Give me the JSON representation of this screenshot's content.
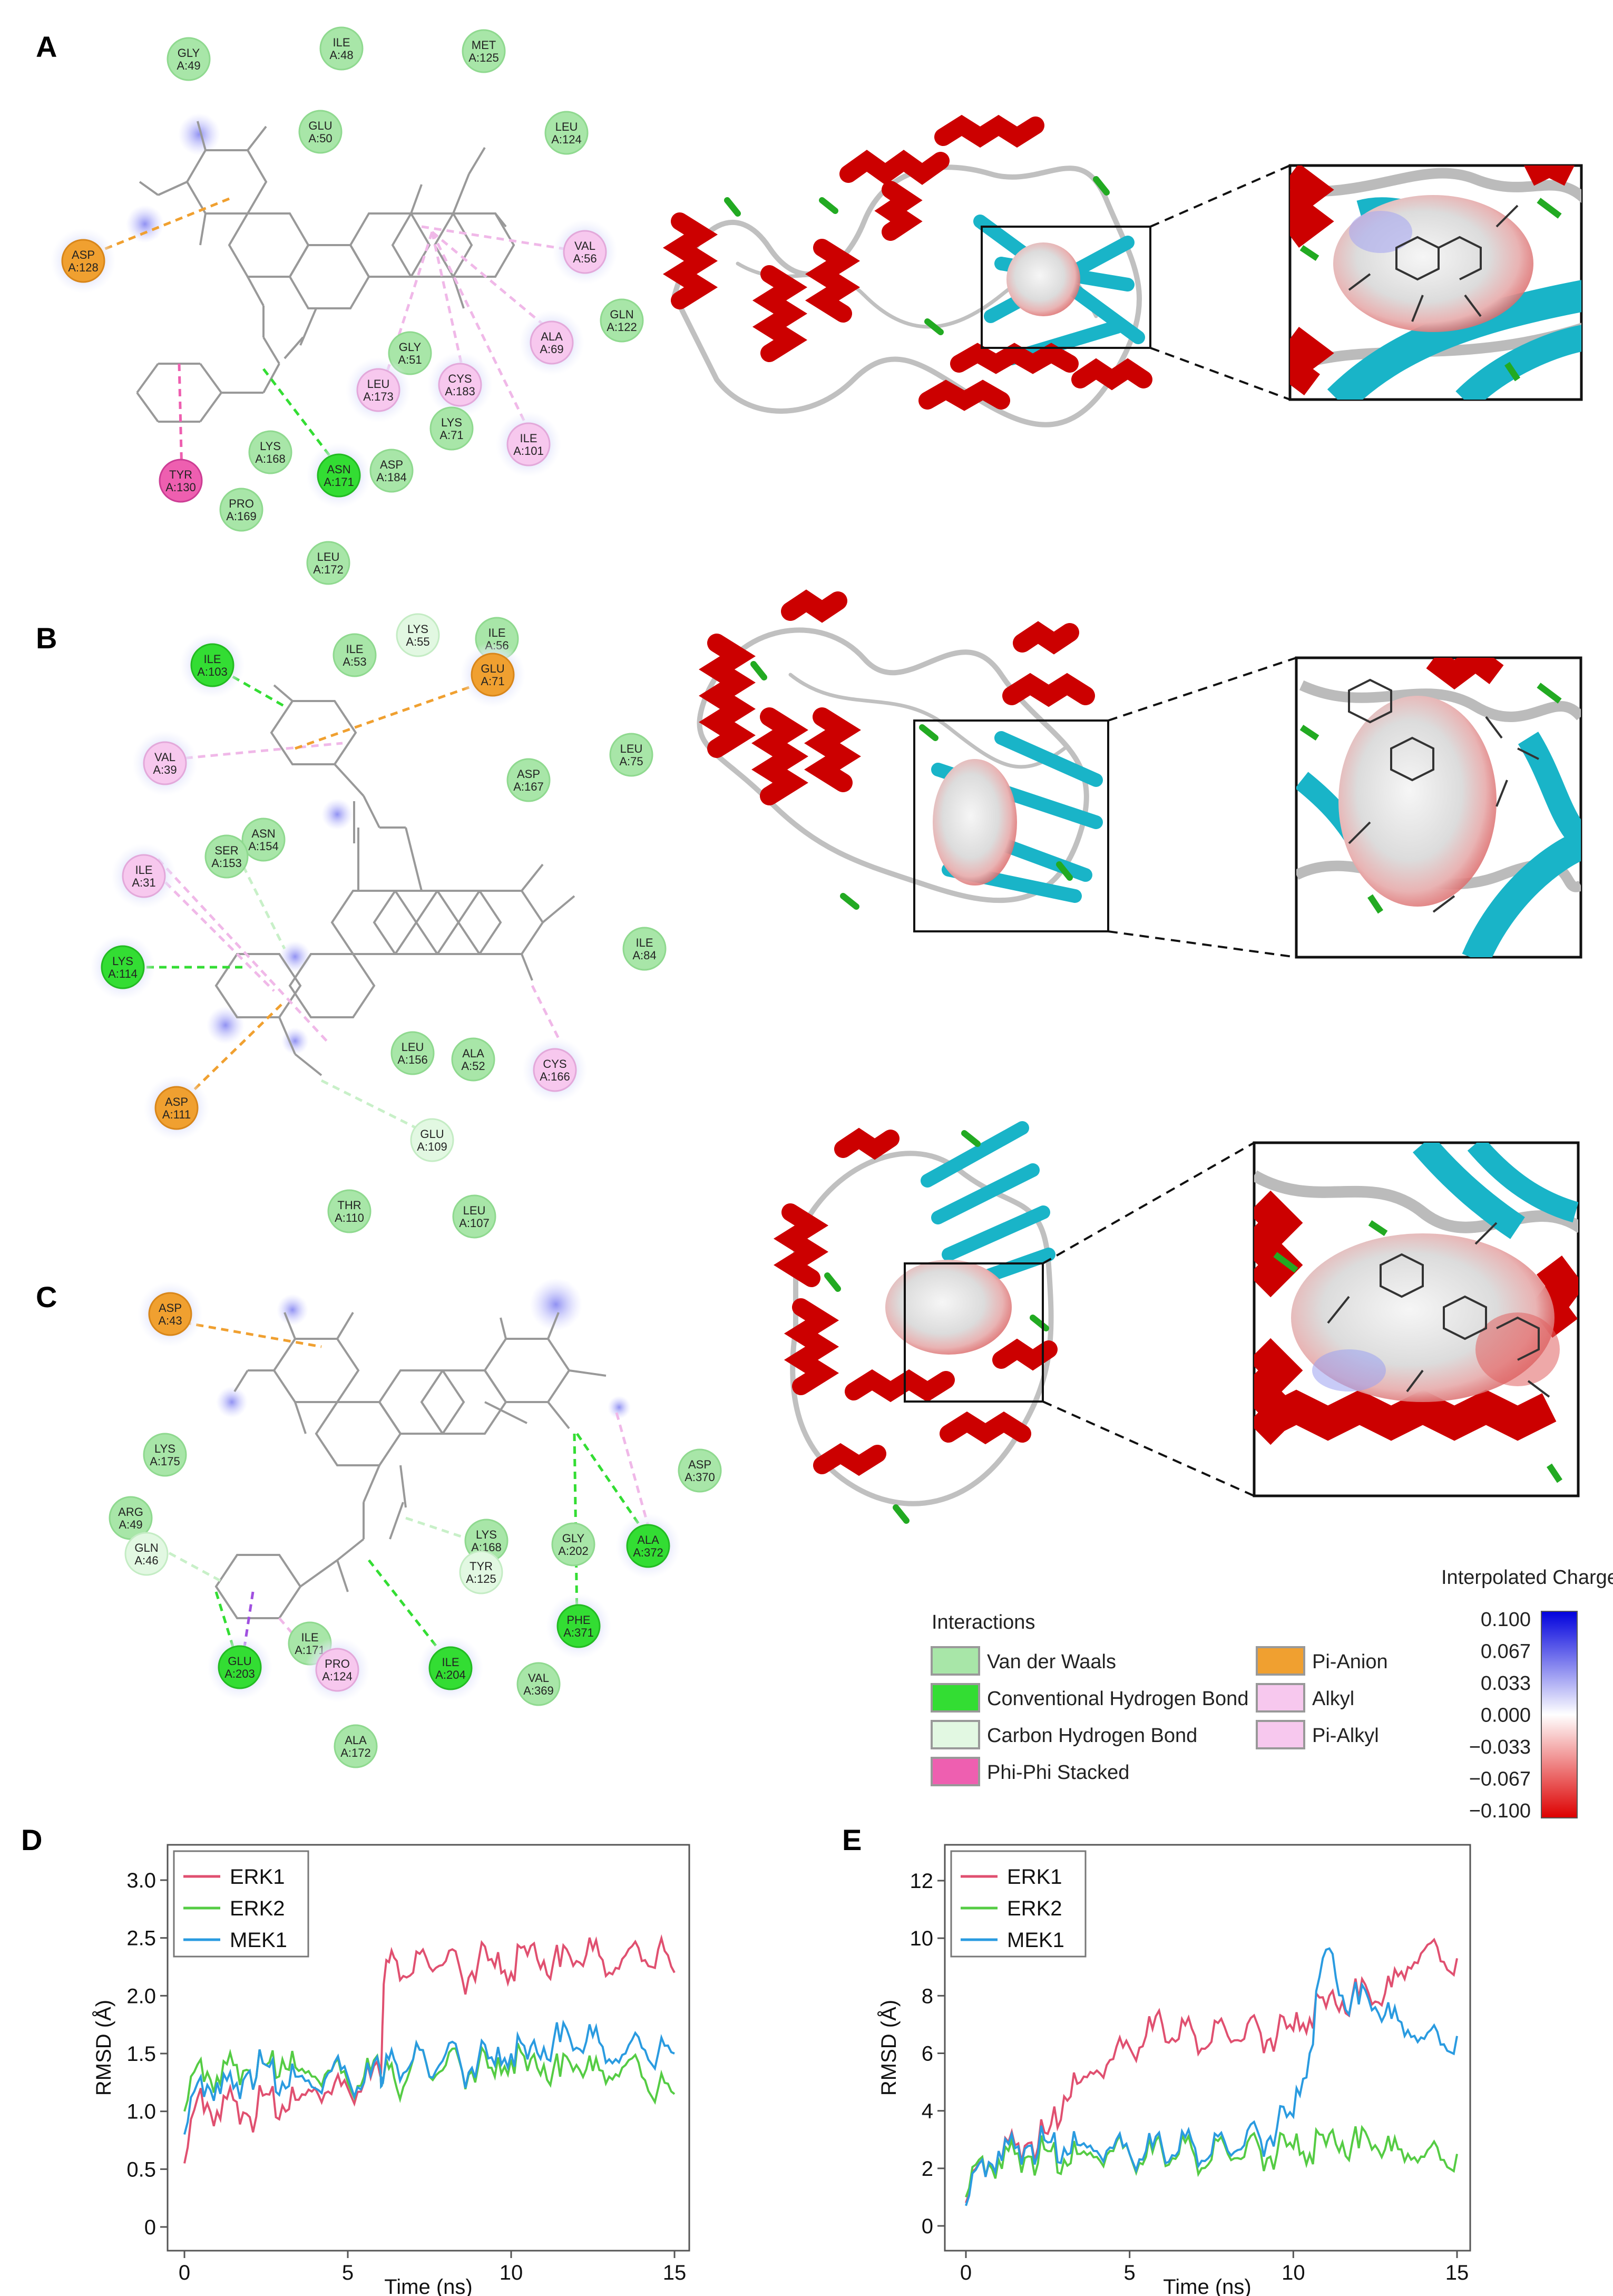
{
  "panels": {
    "a": "A",
    "b": "B",
    "c": "C",
    "d": "D",
    "e": "E"
  },
  "colors": {
    "vdw": "#a8e6a8",
    "hbond": "#33dd33",
    "carbon_hbond": "#e2f8e2",
    "pipi": "#ee5fb0",
    "pi_anion": "#f0a030",
    "alkyl": "#f7c8ee",
    "pi_alkyl": "#f7c8ee",
    "helix": "#cc0000",
    "sheet": "#19b4c8",
    "coil": "#bfbfbf",
    "turn": "#22aa22",
    "erk1": "#e05070",
    "erk2": "#55cc44",
    "mek1": "#2a9be0"
  },
  "panel_a": {
    "residues": [
      {
        "name": "GLY",
        "num": "A:49",
        "type": "vdw"
      },
      {
        "name": "ILE",
        "num": "A:48",
        "type": "vdw"
      },
      {
        "name": "MET",
        "num": "A:125",
        "type": "vdw"
      },
      {
        "name": "GLU",
        "num": "A:50",
        "type": "vdw"
      },
      {
        "name": "LEU",
        "num": "A:124",
        "type": "vdw"
      },
      {
        "name": "ASP",
        "num": "A:128",
        "type": "pi_anion"
      },
      {
        "name": "VAL",
        "num": "A:56",
        "type": "alkyl"
      },
      {
        "name": "GLN",
        "num": "A:122",
        "type": "vdw"
      },
      {
        "name": "ALA",
        "num": "A:69",
        "type": "alkyl"
      },
      {
        "name": "GLY",
        "num": "A:51",
        "type": "vdw"
      },
      {
        "name": "LEU",
        "num": "A:173",
        "type": "alkyl"
      },
      {
        "name": "CYS",
        "num": "A:183",
        "type": "alkyl"
      },
      {
        "name": "LYS",
        "num": "A:71",
        "type": "vdw"
      },
      {
        "name": "ILE",
        "num": "A:101",
        "type": "alkyl"
      },
      {
        "name": "LYS",
        "num": "A:168",
        "type": "vdw"
      },
      {
        "name": "ASN",
        "num": "A:171",
        "type": "hbond"
      },
      {
        "name": "ASP",
        "num": "A:184",
        "type": "vdw"
      },
      {
        "name": "TYR",
        "num": "A:130",
        "type": "pipi"
      },
      {
        "name": "PRO",
        "num": "A:169",
        "type": "vdw"
      },
      {
        "name": "LEU",
        "num": "A:172",
        "type": "vdw"
      }
    ]
  },
  "panel_b": {
    "residues": [
      {
        "name": "ILE",
        "num": "A:103",
        "type": "hbond"
      },
      {
        "name": "ILE",
        "num": "A:53",
        "type": "vdw"
      },
      {
        "name": "LYS",
        "num": "A:55",
        "type": "carbon_hbond"
      },
      {
        "name": "ILE",
        "num": "A:56",
        "type": "vdw"
      },
      {
        "name": "GLU",
        "num": "A:71",
        "type": "pi_anion"
      },
      {
        "name": "LEU",
        "num": "A:75",
        "type": "vdw"
      },
      {
        "name": "VAL",
        "num": "A:39",
        "type": "alkyl"
      },
      {
        "name": "ASP",
        "num": "A:167",
        "type": "vdw"
      },
      {
        "name": "ASN",
        "num": "A:154",
        "type": "vdw"
      },
      {
        "name": "SER",
        "num": "A:153",
        "type": "vdw"
      },
      {
        "name": "ILE",
        "num": "A:31",
        "type": "alkyl"
      },
      {
        "name": "LYS",
        "num": "A:114",
        "type": "hbond"
      },
      {
        "name": "ILE",
        "num": "A:84",
        "type": "vdw"
      },
      {
        "name": "LEU",
        "num": "A:156",
        "type": "vdw"
      },
      {
        "name": "ALA",
        "num": "A:52",
        "type": "vdw"
      },
      {
        "name": "CYS",
        "num": "A:166",
        "type": "alkyl"
      },
      {
        "name": "ASP",
        "num": "A:111",
        "type": "pi_anion"
      },
      {
        "name": "GLU",
        "num": "A:109",
        "type": "carbon_hbond"
      },
      {
        "name": "THR",
        "num": "A:110",
        "type": "vdw"
      },
      {
        "name": "LEU",
        "num": "A:107",
        "type": "vdw"
      }
    ]
  },
  "panel_c": {
    "residues": [
      {
        "name": "ASP",
        "num": "A:43",
        "type": "pi_anion"
      },
      {
        "name": "LYS",
        "num": "A:175",
        "type": "vdw"
      },
      {
        "name": "ARG",
        "num": "A:49",
        "type": "vdw"
      },
      {
        "name": "ASP",
        "num": "A:370",
        "type": "vdw"
      },
      {
        "name": "LYS",
        "num": "A:168",
        "type": "vdw"
      },
      {
        "name": "TYR",
        "num": "A:125",
        "type": "carbon_hbond"
      },
      {
        "name": "GLY",
        "num": "A:202",
        "type": "vdw"
      },
      {
        "name": "ALA",
        "num": "A:372",
        "type": "hbond"
      },
      {
        "name": "GLN",
        "num": "A:46",
        "type": "carbon_hbond"
      },
      {
        "name": "PHE",
        "num": "A:371",
        "type": "hbond"
      },
      {
        "name": "ILE",
        "num": "A:171",
        "type": "vdw"
      },
      {
        "name": "GLU",
        "num": "A:203",
        "type": "hbond"
      },
      {
        "name": "PRO",
        "num": "A:124",
        "type": "alkyl"
      },
      {
        "name": "ILE",
        "num": "A:204",
        "type": "hbond"
      },
      {
        "name": "VAL",
        "num": "A:369",
        "type": "vdw"
      },
      {
        "name": "ALA",
        "num": "A:172",
        "type": "vdw"
      }
    ]
  },
  "legend": {
    "title": "Interactions",
    "items": [
      {
        "key": "vdw",
        "label": "Van der Waals"
      },
      {
        "key": "hbond",
        "label": "Conventional Hydrogen Bond"
      },
      {
        "key": "carbon_hbond",
        "label": "Carbon Hydrogen Bond"
      },
      {
        "key": "pipi",
        "label": "Phi-Phi Stacked"
      },
      {
        "key": "pi_anion",
        "label": "Pi-Anion"
      },
      {
        "key": "alkyl",
        "label": "Alkyl"
      },
      {
        "key": "pi_alkyl",
        "label": "Pi-Alkyl"
      }
    ]
  },
  "charge_scale": {
    "title": "Interpolated Charge",
    "ticks": [
      "0.100",
      "0.067",
      "0.033",
      "0.000",
      "−0.033",
      "−0.067",
      "−0.100"
    ]
  },
  "chart_data": [
    {
      "type": "line",
      "xlabel": "Time (ns)",
      "ylabel": "RMSD (Å)",
      "xlim": [
        0,
        15
      ],
      "ylim": [
        0,
        3
      ],
      "xticks": [
        "0",
        "5",
        "10",
        "15"
      ],
      "yticks": [
        "0",
        "0.5",
        "1.0",
        "1.5",
        "2.0",
        "2.5",
        "3.0"
      ],
      "legend_position": "top-left",
      "x": [
        0,
        0.5,
        1,
        1.5,
        2,
        2.5,
        3,
        3.5,
        4,
        4.5,
        5,
        5.5,
        6,
        6.1,
        6.5,
        7,
        7.5,
        8,
        8.5,
        9,
        9.5,
        10,
        10.5,
        11,
        11.5,
        12,
        12.5,
        13,
        13.5,
        14,
        14.5,
        15
      ],
      "series": [
        {
          "name": "ERK1",
          "values": [
            0.55,
            1.2,
            1.0,
            1.1,
            0.95,
            1.15,
            1.05,
            1.1,
            1.2,
            1.15,
            1.2,
            1.25,
            1.3,
            2.1,
            2.3,
            2.2,
            2.25,
            2.3,
            2.15,
            2.3,
            2.25,
            2.2,
            2.35,
            2.3,
            2.25,
            2.3,
            2.4,
            2.2,
            2.35,
            2.3,
            2.4,
            2.2
          ]
        },
        {
          "name": "ERK2",
          "values": [
            1.0,
            1.45,
            1.3,
            1.4,
            1.35,
            1.4,
            1.45,
            1.35,
            1.3,
            1.35,
            1.25,
            1.3,
            1.35,
            1.3,
            1.2,
            1.45,
            1.3,
            1.4,
            1.35,
            1.4,
            1.3,
            1.45,
            1.35,
            1.4,
            1.3,
            1.4,
            1.35,
            1.3,
            1.4,
            1.3,
            1.2,
            1.15
          ]
        },
        {
          "name": "MEK1",
          "values": [
            0.8,
            1.3,
            1.25,
            1.2,
            1.35,
            1.4,
            1.25,
            1.3,
            1.2,
            1.35,
            1.3,
            1.25,
            1.35,
            1.3,
            1.4,
            1.45,
            1.3,
            1.5,
            1.35,
            1.45,
            1.4,
            1.5,
            1.45,
            1.55,
            1.6,
            1.55,
            1.65,
            1.45,
            1.5,
            1.55,
            1.5,
            1.5
          ]
        }
      ]
    },
    {
      "type": "line",
      "xlabel": "Time (ns)",
      "ylabel": "RMSD (Å)",
      "xlim": [
        0,
        15
      ],
      "ylim": [
        0,
        12
      ],
      "xticks": [
        "0",
        "5",
        "10",
        "15"
      ],
      "yticks": [
        "0",
        "2",
        "4",
        "6",
        "8",
        "10",
        "12"
      ],
      "legend_position": "top-left",
      "x": [
        0,
        0.5,
        1,
        1.5,
        2,
        2.5,
        3,
        3.5,
        4,
        4.5,
        5,
        5.5,
        6,
        6.5,
        7,
        7.5,
        8,
        8.5,
        9,
        9.5,
        10,
        10.5,
        11,
        11.5,
        12,
        12.5,
        13,
        13.5,
        14,
        14.5,
        15
      ],
      "series": [
        {
          "name": "ERK1",
          "values": [
            0.8,
            2.3,
            2.6,
            2.8,
            2.9,
            3.2,
            4.5,
            5.0,
            5.4,
            5.8,
            6.2,
            6.6,
            7.0,
            6.5,
            6.6,
            6.4,
            6.6,
            6.5,
            6.7,
            6.6,
            6.8,
            7.2,
            7.6,
            7.8,
            7.9,
            7.8,
            8.3,
            9.0,
            9.6,
            9.2,
            9.3
          ]
        },
        {
          "name": "ERK2",
          "values": [
            1.0,
            2.4,
            2.3,
            2.5,
            2.4,
            2.6,
            2.3,
            2.5,
            2.4,
            2.6,
            2.5,
            2.4,
            2.6,
            2.5,
            2.4,
            2.3,
            2.5,
            2.4,
            2.6,
            2.5,
            2.7,
            2.5,
            2.8,
            2.9,
            2.7,
            2.8,
            2.6,
            2.5,
            2.4,
            2.3,
            2.5
          ]
        },
        {
          "name": "MEK1",
          "values": [
            0.7,
            2.3,
            2.6,
            2.7,
            2.8,
            2.9,
            2.7,
            2.8,
            2.6,
            2.7,
            2.5,
            2.6,
            2.7,
            2.6,
            2.7,
            2.5,
            2.6,
            2.8,
            3.0,
            3.4,
            3.8,
            6.0,
            9.6,
            8.0,
            7.7,
            7.6,
            7.2,
            6.8,
            6.5,
            6.3,
            6.6
          ]
        }
      ]
    }
  ]
}
